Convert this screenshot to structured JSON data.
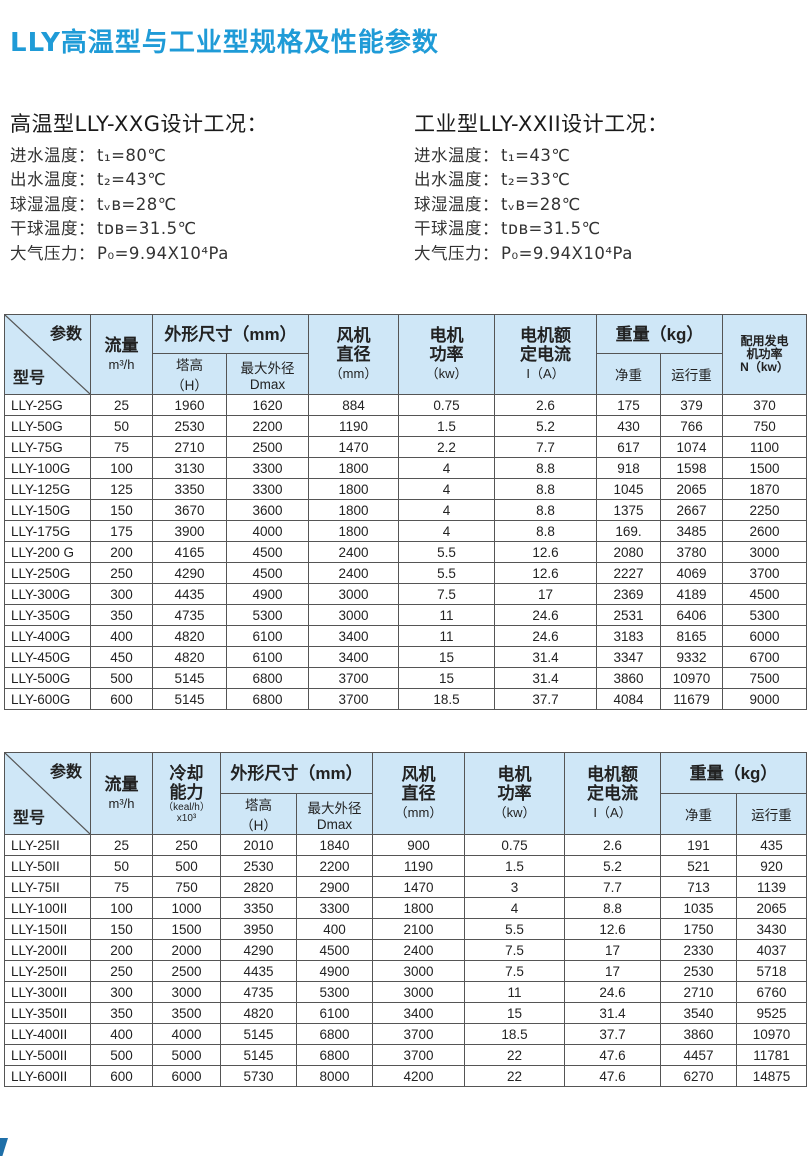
{
  "title": "LLY高温型与工业型规格及性能参数",
  "conditions": {
    "high_temp": {
      "heading": "高温型LLY-XXG设计工况：",
      "lines": [
        {
          "label": "进水温度：",
          "value": "t₁=80℃"
        },
        {
          "label": "出水温度：",
          "value": "t₂=43℃"
        },
        {
          "label": "球湿温度：",
          "value": "tᵥʙ=28℃"
        },
        {
          "label": "干球温度：",
          "value": "tᴅʙ=31.5℃"
        },
        {
          "label": "大气压力：",
          "value": "P₀=9.94X10⁴Pa"
        }
      ]
    },
    "industrial": {
      "heading": "工业型LLY-XXII设计工况：",
      "lines": [
        {
          "label": "进水温度：",
          "value": "t₁=43℃"
        },
        {
          "label": "出水温度：",
          "value": "t₂=33℃"
        },
        {
          "label": "球湿温度：",
          "value": "tᵥʙ=28℃"
        },
        {
          "label": "干球温度：",
          "value": "tᴅʙ=31.5℃"
        },
        {
          "label": "大气压力：",
          "value": "P₀=9.94X10⁴Pa"
        }
      ]
    }
  },
  "table1": {
    "head": {
      "param": "参数",
      "model": "型号",
      "flow": "流量",
      "flow_unit": "m³/h",
      "size": "外形尺寸（mm）",
      "height": "塔高",
      "height_unit": "（H）",
      "dia": "最大外径",
      "dia_unit": "Dmax",
      "fan": "风机",
      "fan2": "直径",
      "fan_unit": "（mm）",
      "motor": "电机",
      "motor2": "功率",
      "motor_unit": "（kw）",
      "current": "电机额",
      "current2": "定电流",
      "current_unit": "I（A）",
      "weight": "重量（kg）",
      "net": "净重",
      "run": "运行重",
      "gen": "配用发电",
      "gen2": "机功率",
      "gen_unit": "N（kw）"
    },
    "rows": [
      [
        "LLY-25G",
        "25",
        "1960",
        "1620",
        "884",
        "0.75",
        "2.6",
        "175",
        "379",
        "370"
      ],
      [
        "LLY-50G",
        "50",
        "2530",
        "2200",
        "1190",
        "1.5",
        "5.2",
        "430",
        "766",
        "750"
      ],
      [
        "LLY-75G",
        "75",
        "2710",
        "2500",
        "1470",
        "2.2",
        "7.7",
        "617",
        "1074",
        "1100"
      ],
      [
        "LLY-100G",
        "100",
        "3130",
        "3300",
        "1800",
        "4",
        "8.8",
        "918",
        "1598",
        "1500"
      ],
      [
        "LLY-125G",
        "125",
        "3350",
        "3300",
        "1800",
        "4",
        "8.8",
        "1045",
        "2065",
        "1870"
      ],
      [
        "LLY-150G",
        "150",
        "3670",
        "3600",
        "1800",
        "4",
        "8.8",
        "1375",
        "2667",
        "2250"
      ],
      [
        "LLY-175G",
        "175",
        "3900",
        "4000",
        "1800",
        "4",
        "8.8",
        "169.",
        "3485",
        "2600"
      ],
      [
        "LLY-200 G",
        "200",
        "4165",
        "4500",
        "2400",
        "5.5",
        "12.6",
        "2080",
        "3780",
        "3000"
      ],
      [
        "LLY-250G",
        "250",
        "4290",
        "4500",
        "2400",
        "5.5",
        "12.6",
        "2227",
        "4069",
        "3700"
      ],
      [
        "LLY-300G",
        "300",
        "4435",
        "4900",
        "3000",
        "7.5",
        "17",
        "2369",
        "4189",
        "4500"
      ],
      [
        "LLY-350G",
        "350",
        "4735",
        "5300",
        "3000",
        "11",
        "24.6",
        "2531",
        "6406",
        "5300"
      ],
      [
        "LLY-400G",
        "400",
        "4820",
        "6100",
        "3400",
        "11",
        "24.6",
        "3183",
        "8165",
        "6000"
      ],
      [
        "LLY-450G",
        "450",
        "4820",
        "6100",
        "3400",
        "15",
        "31.4",
        "3347",
        "9332",
        "6700"
      ],
      [
        "LLY-500G",
        "500",
        "5145",
        "6800",
        "3700",
        "15",
        "31.4",
        "3860",
        "10970",
        "7500"
      ],
      [
        "LLY-600G",
        "600",
        "5145",
        "6800",
        "3700",
        "18.5",
        "37.7",
        "4084",
        "11679",
        "9000"
      ]
    ]
  },
  "table2": {
    "head": {
      "param": "参数",
      "model": "型号",
      "flow": "流量",
      "flow_unit": "m³/h",
      "cool": "冷却",
      "cool2": "能力",
      "cool_unit": "（keal/h）",
      "cool_unit2": "x10³",
      "size": "外形尺寸（mm）",
      "height": "塔高",
      "height_unit": "（H）",
      "dia": "最大外径",
      "dia_unit": "Dmax",
      "fan": "风机",
      "fan2": "直径",
      "fan_unit": "（mm）",
      "motor": "电机",
      "motor2": "功率",
      "motor_unit": "（kw）",
      "current": "电机额",
      "current2": "定电流",
      "current_unit": "I（A）",
      "weight": "重量（kg）",
      "net": "净重",
      "run": "运行重"
    },
    "rows": [
      [
        "LLY-25II",
        "25",
        "250",
        "2010",
        "1840",
        "900",
        "0.75",
        "2.6",
        "191",
        "435"
      ],
      [
        "LLY-50II",
        "50",
        "500",
        "2530",
        "2200",
        "1190",
        "1.5",
        "5.2",
        "521",
        "920"
      ],
      [
        "LLY-75II",
        "75",
        "750",
        "2820",
        "2900",
        "1470",
        "3",
        "7.7",
        "713",
        "1139"
      ],
      [
        "LLY-100II",
        "100",
        "1000",
        "3350",
        "3300",
        "1800",
        "4",
        "8.8",
        "1035",
        "2065"
      ],
      [
        "LLY-150II",
        "150",
        "1500",
        "3950",
        "400",
        "2100",
        "5.5",
        "12.6",
        "1750",
        "3430"
      ],
      [
        "LLY-200II",
        "200",
        "2000",
        "4290",
        "4500",
        "2400",
        "7.5",
        "17",
        "2330",
        "4037"
      ],
      [
        "LLY-250II",
        "250",
        "2500",
        "4435",
        "4900",
        "3000",
        "7.5",
        "17",
        "2530",
        "5718"
      ],
      [
        "LLY-300II",
        "300",
        "3000",
        "4735",
        "5300",
        "3000",
        "11",
        "24.6",
        "2710",
        "6760"
      ],
      [
        "LLY-350II",
        "350",
        "3500",
        "4820",
        "6100",
        "3400",
        "15",
        "31.4",
        "3540",
        "9525"
      ],
      [
        "LLY-400II",
        "400",
        "4000",
        "5145",
        "6800",
        "3700",
        "18.5",
        "37.7",
        "3860",
        "10970"
      ],
      [
        "LLY-500II",
        "500",
        "5000",
        "5145",
        "6800",
        "3700",
        "22",
        "47.6",
        "4457",
        "11781"
      ],
      [
        "LLY-600II",
        "600",
        "6000",
        "5730",
        "8000",
        "4200",
        "22",
        "47.6",
        "6270",
        "14875"
      ]
    ]
  }
}
